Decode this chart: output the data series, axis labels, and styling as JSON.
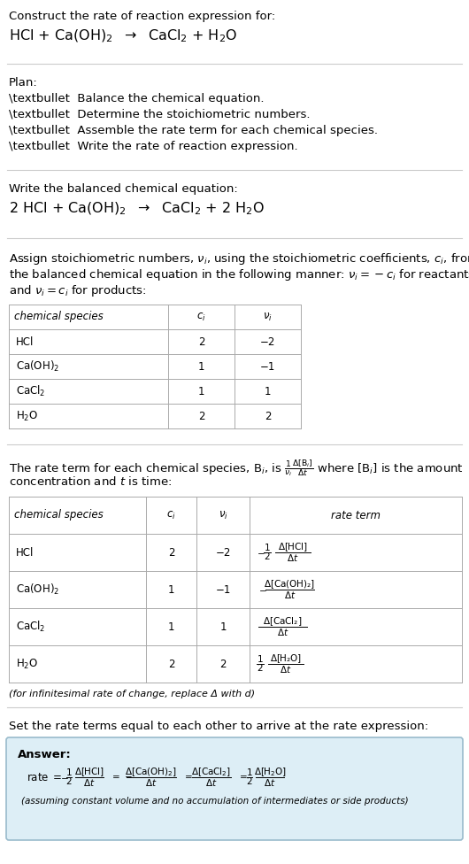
{
  "bg_color": "#ffffff",
  "text_color": "#000000",
  "gray_text": "#888888",
  "title_line1": "Construct the rate of reaction expression for:",
  "reaction_unbalanced": "HCl + Ca(OH)$_2$  $\\rightarrow$  CaCl$_2$ + H$_2$O",
  "plan_header": "Plan:",
  "plan_items": [
    "\\textbullet  Balance the chemical equation.",
    "\\textbullet  Determine the stoichiometric numbers.",
    "\\textbullet  Assemble the rate term for each chemical species.",
    "\\textbullet  Write the rate of reaction expression."
  ],
  "balanced_header": "Write the balanced chemical equation:",
  "reaction_balanced": "2 HCl + Ca(OH)$_2$  $\\rightarrow$  CaCl$_2$ + 2 H$_2$O",
  "stoich_header_lines": [
    "Assign stoichiometric numbers, $\\nu_i$, using the stoichiometric coefficients, $c_i$, from",
    "the balanced chemical equation in the following manner: $\\nu_i = -c_i$ for reactants",
    "and $\\nu_i = c_i$ for products:"
  ],
  "table1_headers": [
    "chemical species",
    "$c_i$",
    "$\\nu_i$"
  ],
  "table1_rows": [
    [
      "HCl",
      "2",
      "−2"
    ],
    [
      "Ca(OH)$_2$",
      "1",
      "−1"
    ],
    [
      "CaCl$_2$",
      "1",
      "1"
    ],
    [
      "H$_2$O",
      "2",
      "2"
    ]
  ],
  "rate_term_lines": [
    "The rate term for each chemical species, B$_i$, is $\\frac{1}{\\nu_i}\\frac{\\Delta[\\mathrm{B}_i]}{\\Delta t}$ where [B$_i$] is the amount",
    "concentration and $t$ is time:"
  ],
  "table2_headers": [
    "chemical species",
    "$c_i$",
    "$\\nu_i$",
    "rate term"
  ],
  "table2_row_species": [
    "HCl",
    "Ca(OH)$_2$",
    "CaCl$_2$",
    "H$_2$O"
  ],
  "table2_row_ci": [
    "2",
    "1",
    "1",
    "2"
  ],
  "table2_row_vi": [
    "−2",
    "−1",
    "1",
    "2"
  ],
  "infinitesimal_note": "(for infinitesimal rate of change, replace Δ with d)",
  "set_rate_header": "Set the rate terms equal to each other to arrive at the rate expression:",
  "answer_box_color": "#ddeef6",
  "answer_box_border": "#99bbcc",
  "answer_label": "Answer:",
  "answer_note": "(assuming constant volume and no accumulation of intermediates or side products)"
}
